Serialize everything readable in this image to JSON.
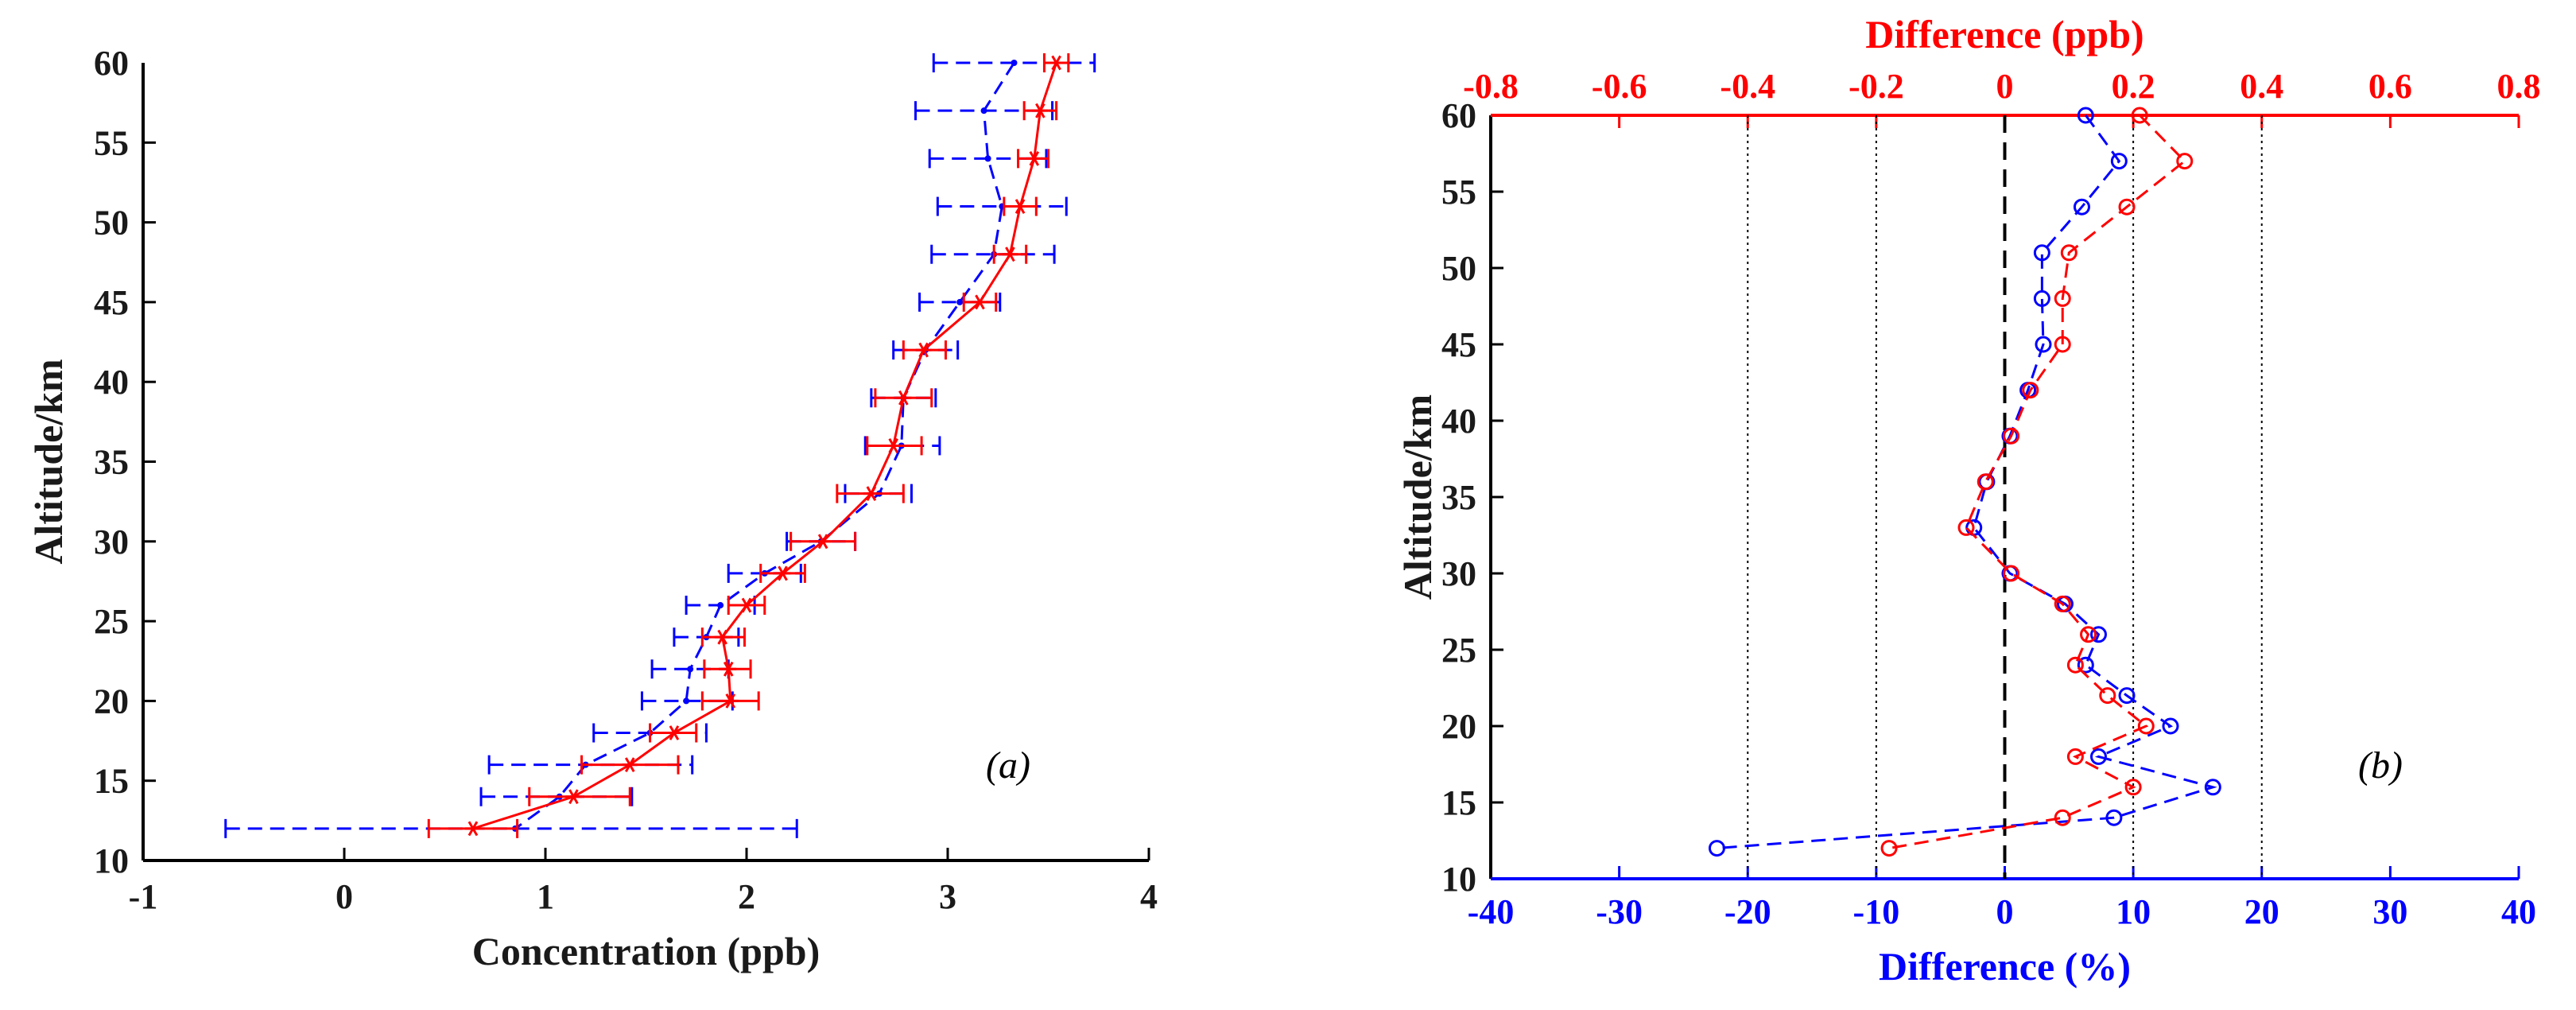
{
  "chart_data": [
    {
      "panel_id": "a",
      "type": "line",
      "annotation": "(a)",
      "xlabel": "Concentration (ppb)",
      "ylabel": "Altitude/km",
      "xlim": [
        -1,
        4
      ],
      "ylim": [
        10,
        60
      ],
      "xticks": [
        "-1",
        "0",
        "1",
        "2",
        "3",
        "4"
      ],
      "yticks": [
        "10",
        "15",
        "20",
        "25",
        "30",
        "35",
        "40",
        "45",
        "50",
        "55",
        "60"
      ],
      "series": [
        {
          "name": "blue dashed profile",
          "color": "#0000ff",
          "style": "dashed",
          "marker": "dot",
          "points": [
            {
              "alt": 60,
              "x": 3.33,
              "lo": 2.93,
              "hi": 3.73
            },
            {
              "alt": 57,
              "x": 3.18,
              "lo": 2.84,
              "hi": 3.52
            },
            {
              "alt": 54,
              "x": 3.2,
              "lo": 2.91,
              "hi": 3.49
            },
            {
              "alt": 51,
              "x": 3.27,
              "lo": 2.95,
              "hi": 3.59
            },
            {
              "alt": 48,
              "x": 3.23,
              "lo": 2.92,
              "hi": 3.53
            },
            {
              "alt": 45,
              "x": 3.06,
              "lo": 2.86,
              "hi": 3.26
            },
            {
              "alt": 42,
              "x": 2.89,
              "lo": 2.73,
              "hi": 3.05
            },
            {
              "alt": 39,
              "x": 2.78,
              "lo": 2.62,
              "hi": 2.94
            },
            {
              "alt": 36,
              "x": 2.77,
              "lo": 2.59,
              "hi": 2.96
            },
            {
              "alt": 33,
              "x": 2.66,
              "lo": 2.49,
              "hi": 2.82
            },
            {
              "alt": 30,
              "x": 2.37,
              "lo": 2.2,
              "hi": 2.54
            },
            {
              "alt": 28,
              "x": 2.09,
              "lo": 1.91,
              "hi": 2.27
            },
            {
              "alt": 26,
              "x": 1.87,
              "lo": 1.7,
              "hi": 2.04
            },
            {
              "alt": 24,
              "x": 1.8,
              "lo": 1.64,
              "hi": 1.96
            },
            {
              "alt": 22,
              "x": 1.72,
              "lo": 1.53,
              "hi": 1.91
            },
            {
              "alt": 20,
              "x": 1.7,
              "lo": 1.48,
              "hi": 1.93
            },
            {
              "alt": 18,
              "x": 1.52,
              "lo": 1.24,
              "hi": 1.8
            },
            {
              "alt": 16,
              "x": 1.2,
              "lo": 0.72,
              "hi": 1.73
            },
            {
              "alt": 14,
              "x": 1.07,
              "lo": 0.68,
              "hi": 1.43
            },
            {
              "alt": 12,
              "x": 0.85,
              "lo": -0.59,
              "hi": 2.25
            }
          ]
        },
        {
          "name": "red solid profile",
          "color": "#ff0000",
          "style": "solid",
          "marker": "asterisk",
          "points": [
            {
              "alt": 60,
              "x": 3.54,
              "lo": 3.48,
              "hi": 3.6
            },
            {
              "alt": 57,
              "x": 3.46,
              "lo": 3.38,
              "hi": 3.54
            },
            {
              "alt": 54,
              "x": 3.43,
              "lo": 3.35,
              "hi": 3.5
            },
            {
              "alt": 51,
              "x": 3.36,
              "lo": 3.28,
              "hi": 3.44
            },
            {
              "alt": 48,
              "x": 3.31,
              "lo": 3.23,
              "hi": 3.39
            },
            {
              "alt": 45,
              "x": 3.16,
              "lo": 3.08,
              "hi": 3.24
            },
            {
              "alt": 42,
              "x": 2.88,
              "lo": 2.78,
              "hi": 2.99
            },
            {
              "alt": 39,
              "x": 2.78,
              "lo": 2.64,
              "hi": 2.92
            },
            {
              "alt": 36,
              "x": 2.73,
              "lo": 2.6,
              "hi": 2.87
            },
            {
              "alt": 33,
              "x": 2.62,
              "lo": 2.45,
              "hi": 2.78
            },
            {
              "alt": 30,
              "x": 2.38,
              "lo": 2.22,
              "hi": 2.54
            },
            {
              "alt": 28,
              "x": 2.18,
              "lo": 2.07,
              "hi": 2.29
            },
            {
              "alt": 26,
              "x": 2.0,
              "lo": 1.91,
              "hi": 2.09
            },
            {
              "alt": 24,
              "x": 1.88,
              "lo": 1.78,
              "hi": 1.99
            },
            {
              "alt": 22,
              "x": 1.91,
              "lo": 1.79,
              "hi": 2.02
            },
            {
              "alt": 20,
              "x": 1.92,
              "lo": 1.78,
              "hi": 2.06
            },
            {
              "alt": 18,
              "x": 1.64,
              "lo": 1.52,
              "hi": 1.75
            },
            {
              "alt": 16,
              "x": 1.42,
              "lo": 1.18,
              "hi": 1.66
            },
            {
              "alt": 14,
              "x": 1.14,
              "lo": 0.92,
              "hi": 1.42
            },
            {
              "alt": 12,
              "x": 0.64,
              "lo": 0.42,
              "hi": 0.86
            }
          ]
        }
      ]
    },
    {
      "panel_id": "b",
      "type": "line",
      "annotation": "(b)",
      "ylabel": "Altitude/km",
      "ylim": [
        10,
        60
      ],
      "yticks": [
        "10",
        "15",
        "20",
        "25",
        "30",
        "35",
        "40",
        "45",
        "50",
        "55",
        "60"
      ],
      "bottom_axis": {
        "label": "Difference (%)",
        "color": "#0000ff",
        "lim": [
          -40,
          40
        ],
        "ticks": [
          "-40",
          "-30",
          "-20",
          "-10",
          "0",
          "10",
          "20",
          "30",
          "40"
        ]
      },
      "top_axis": {
        "label": "Difference (ppb)",
        "color": "#ff0000",
        "lim": [
          -0.8,
          0.8
        ],
        "ticks": [
          "-0.8",
          "-0.6",
          "-0.4",
          "-0.2",
          "0",
          "0.2",
          "0.4",
          "0.6",
          "0.8"
        ]
      },
      "reference_lines_percent": [
        -20,
        -10,
        10,
        20
      ],
      "zero_line_percent": 0,
      "series": [
        {
          "name": "Difference (%)",
          "axis": "bottom",
          "color": "#0000ff",
          "style": "dashed",
          "marker": "circle",
          "points": [
            {
              "alt": 60,
              "x": 6.3
            },
            {
              "alt": 57,
              "x": 8.9
            },
            {
              "alt": 54,
              "x": 6.0
            },
            {
              "alt": 51,
              "x": 2.9
            },
            {
              "alt": 48,
              "x": 2.9
            },
            {
              "alt": 45,
              "x": 3.0
            },
            {
              "alt": 42,
              "x": 1.8
            },
            {
              "alt": 39,
              "x": 0.4
            },
            {
              "alt": 36,
              "x": -1.4
            },
            {
              "alt": 33,
              "x": -2.4
            },
            {
              "alt": 30,
              "x": 0.4
            },
            {
              "alt": 28,
              "x": 4.7
            },
            {
              "alt": 26,
              "x": 7.3
            },
            {
              "alt": 24,
              "x": 6.3
            },
            {
              "alt": 22,
              "x": 9.5
            },
            {
              "alt": 20,
              "x": 12.9
            },
            {
              "alt": 18,
              "x": 7.3
            },
            {
              "alt": 16,
              "x": 16.2
            },
            {
              "alt": 14,
              "x": 8.5
            },
            {
              "alt": 12,
              "x": -22.4
            }
          ]
        },
        {
          "name": "Difference (ppb)",
          "axis": "top",
          "color": "#ff0000",
          "style": "dashed",
          "marker": "circle",
          "points": [
            {
              "alt": 60,
              "x": 0.21
            },
            {
              "alt": 57,
              "x": 0.28
            },
            {
              "alt": 54,
              "x": 0.19
            },
            {
              "alt": 51,
              "x": 0.1
            },
            {
              "alt": 48,
              "x": 0.09
            },
            {
              "alt": 45,
              "x": 0.09
            },
            {
              "alt": 42,
              "x": 0.04
            },
            {
              "alt": 39,
              "x": 0.01
            },
            {
              "alt": 36,
              "x": -0.03
            },
            {
              "alt": 33,
              "x": -0.06
            },
            {
              "alt": 30,
              "x": 0.01
            },
            {
              "alt": 28,
              "x": 0.09
            },
            {
              "alt": 26,
              "x": 0.13
            },
            {
              "alt": 24,
              "x": 0.11
            },
            {
              "alt": 22,
              "x": 0.16
            },
            {
              "alt": 20,
              "x": 0.22
            },
            {
              "alt": 18,
              "x": 0.11
            },
            {
              "alt": 16,
              "x": 0.2
            },
            {
              "alt": 14,
              "x": 0.09
            },
            {
              "alt": 12,
              "x": -0.18
            }
          ]
        }
      ]
    }
  ]
}
